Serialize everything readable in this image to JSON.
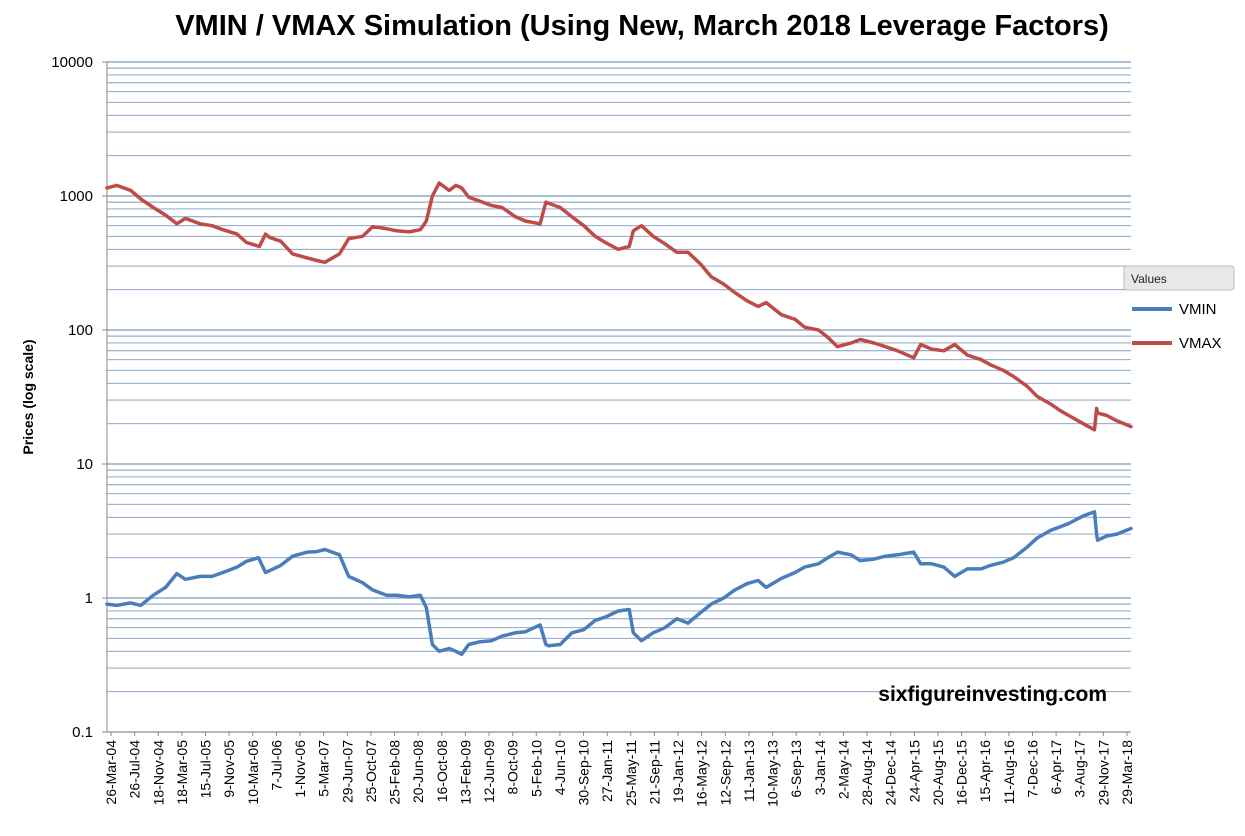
{
  "chart_data": {
    "type": "line",
    "title": "VMIN / VMAX Simulation (Using New, March 2018 Leverage Factors)",
    "xlabel": "",
    "ylabel": "Prices (log scale)",
    "y_scale": "log",
    "ylim": [
      0.1,
      10000
    ],
    "y_ticks": [
      "0.1",
      "1",
      "10",
      "100",
      "1000",
      "10000"
    ],
    "x_range": [
      "2004-03-26",
      "2018-07-31"
    ],
    "x_tick_labels": [
      "26-Mar-04",
      "26-Jul-04",
      "18-Nov-04",
      "18-Mar-05",
      "15-Jul-05",
      "9-Nov-05",
      "10-Mar-06",
      "7-Jul-06",
      "1-Nov-06",
      "5-Mar-07",
      "29-Jun-07",
      "25-Oct-07",
      "25-Feb-08",
      "20-Jun-08",
      "16-Oct-08",
      "13-Feb-09",
      "12-Jun-09",
      "8-Oct-09",
      "5-Feb-10",
      "4-Jun-10",
      "30-Sep-10",
      "27-Jan-11",
      "25-May-11",
      "21-Sep-11",
      "19-Jan-12",
      "16-May-12",
      "12-Sep-12",
      "11-Jan-13",
      "10-May-13",
      "6-Sep-13",
      "3-Jan-14",
      "2-May-14",
      "28-Aug-14",
      "24-Dec-14",
      "24-Apr-15",
      "20-Aug-15",
      "16-Dec-15",
      "15-Apr-16",
      "11-Aug-16",
      "7-Dec-16",
      "6-Apr-17",
      "3-Aug-17",
      "29-Nov-17",
      "29-Mar-18"
    ],
    "grid": "horizontal",
    "legend": {
      "title": "Values",
      "position": "right"
    },
    "annotation": "sixfigureinvesting.com",
    "series": [
      {
        "name": "VMIN",
        "color": "#4a7ebb",
        "points": [
          [
            "2004-03-26",
            0.9
          ],
          [
            "2004-05-15",
            0.88
          ],
          [
            "2004-07-26",
            0.92
          ],
          [
            "2004-09-15",
            0.88
          ],
          [
            "2004-11-18",
            1.05
          ],
          [
            "2005-01-20",
            1.2
          ],
          [
            "2005-03-18",
            1.52
          ],
          [
            "2005-05-01",
            1.38
          ],
          [
            "2005-07-15",
            1.45
          ],
          [
            "2005-09-15",
            1.45
          ],
          [
            "2005-11-09",
            1.55
          ],
          [
            "2006-01-20",
            1.7
          ],
          [
            "2006-03-10",
            1.88
          ],
          [
            "2006-05-10",
            2.0
          ],
          [
            "2006-06-15",
            1.55
          ],
          [
            "2006-07-07",
            1.6
          ],
          [
            "2006-09-01",
            1.75
          ],
          [
            "2006-11-01",
            2.05
          ],
          [
            "2007-01-15",
            2.2
          ],
          [
            "2007-03-05",
            2.22
          ],
          [
            "2007-04-15",
            2.3
          ],
          [
            "2007-06-29",
            2.1
          ],
          [
            "2007-08-15",
            1.45
          ],
          [
            "2007-10-25",
            1.3
          ],
          [
            "2007-12-15",
            1.15
          ],
          [
            "2008-02-25",
            1.05
          ],
          [
            "2008-04-15",
            1.05
          ],
          [
            "2008-06-20",
            1.02
          ],
          [
            "2008-08-15",
            1.05
          ],
          [
            "2008-09-15",
            0.85
          ],
          [
            "2008-10-16",
            0.45
          ],
          [
            "2008-11-20",
            0.4
          ],
          [
            "2009-01-10",
            0.42
          ],
          [
            "2009-02-13",
            0.4
          ],
          [
            "2009-03-15",
            0.38
          ],
          [
            "2009-04-20",
            0.45
          ],
          [
            "2009-06-12",
            0.47
          ],
          [
            "2009-08-15",
            0.48
          ],
          [
            "2009-10-08",
            0.52
          ],
          [
            "2009-12-15",
            0.55
          ],
          [
            "2010-02-05",
            0.56
          ],
          [
            "2010-04-20",
            0.63
          ],
          [
            "2010-05-20",
            0.45
          ],
          [
            "2010-06-04",
            0.44
          ],
          [
            "2010-08-01",
            0.45
          ],
          [
            "2010-09-30",
            0.55
          ],
          [
            "2010-11-30",
            0.58
          ],
          [
            "2011-01-27",
            0.68
          ],
          [
            "2011-03-20",
            0.72
          ],
          [
            "2011-05-25",
            0.8
          ],
          [
            "2011-07-20",
            0.82
          ],
          [
            "2011-08-10",
            0.55
          ],
          [
            "2011-09-21",
            0.48
          ],
          [
            "2011-11-20",
            0.55
          ],
          [
            "2012-01-19",
            0.6
          ],
          [
            "2012-03-20",
            0.7
          ],
          [
            "2012-05-16",
            0.65
          ],
          [
            "2012-07-20",
            0.78
          ],
          [
            "2012-09-12",
            0.9
          ],
          [
            "2012-11-15",
            1.0
          ],
          [
            "2013-01-11",
            1.15
          ],
          [
            "2013-03-15",
            1.28
          ],
          [
            "2013-05-10",
            1.35
          ],
          [
            "2013-06-20",
            1.2
          ],
          [
            "2013-09-06",
            1.4
          ],
          [
            "2013-11-15",
            1.55
          ],
          [
            "2014-01-03",
            1.7
          ],
          [
            "2014-03-15",
            1.8
          ],
          [
            "2014-05-02",
            2.0
          ],
          [
            "2014-06-20",
            2.2
          ],
          [
            "2014-08-28",
            2.1
          ],
          [
            "2014-10-15",
            1.9
          ],
          [
            "2014-12-24",
            1.95
          ],
          [
            "2015-02-20",
            2.05
          ],
          [
            "2015-04-24",
            2.1
          ],
          [
            "2015-07-15",
            2.2
          ],
          [
            "2015-08-20",
            1.8
          ],
          [
            "2015-10-15",
            1.8
          ],
          [
            "2015-12-16",
            1.7
          ],
          [
            "2016-02-10",
            1.45
          ],
          [
            "2016-04-15",
            1.65
          ],
          [
            "2016-06-25",
            1.65
          ],
          [
            "2016-08-11",
            1.75
          ],
          [
            "2016-10-15",
            1.85
          ],
          [
            "2016-12-07",
            2.0
          ],
          [
            "2017-02-15",
            2.4
          ],
          [
            "2017-04-06",
            2.8
          ],
          [
            "2017-06-15",
            3.2
          ],
          [
            "2017-08-03",
            3.4
          ],
          [
            "2017-09-15",
            3.6
          ],
          [
            "2017-11-29",
            4.1
          ],
          [
            "2018-01-25",
            4.4
          ],
          [
            "2018-02-05",
            3.0
          ],
          [
            "2018-02-10",
            2.7
          ],
          [
            "2018-03-29",
            2.9
          ],
          [
            "2018-05-20",
            3.0
          ],
          [
            "2018-07-31",
            3.3
          ]
        ]
      },
      {
        "name": "VMAX",
        "color": "#be4b48",
        "points": [
          [
            "2004-03-26",
            1150
          ],
          [
            "2004-05-15",
            1200
          ],
          [
            "2004-07-26",
            1100
          ],
          [
            "2004-09-15",
            950
          ],
          [
            "2004-11-18",
            820
          ],
          [
            "2005-01-20",
            720
          ],
          [
            "2005-03-18",
            620
          ],
          [
            "2005-05-01",
            680
          ],
          [
            "2005-07-15",
            620
          ],
          [
            "2005-09-15",
            600
          ],
          [
            "2005-11-09",
            560
          ],
          [
            "2006-01-20",
            520
          ],
          [
            "2006-03-10",
            450
          ],
          [
            "2006-05-15",
            420
          ],
          [
            "2006-06-15",
            520
          ],
          [
            "2006-07-07",
            490
          ],
          [
            "2006-09-01",
            460
          ],
          [
            "2006-11-01",
            370
          ],
          [
            "2007-01-15",
            345
          ],
          [
            "2007-03-05",
            330
          ],
          [
            "2007-04-15",
            320
          ],
          [
            "2007-06-29",
            370
          ],
          [
            "2007-08-15",
            480
          ],
          [
            "2007-10-25",
            500
          ],
          [
            "2007-12-15",
            590
          ],
          [
            "2008-02-25",
            570
          ],
          [
            "2008-04-15",
            550
          ],
          [
            "2008-06-20",
            540
          ],
          [
            "2008-08-15",
            560
          ],
          [
            "2008-09-15",
            650
          ],
          [
            "2008-10-16",
            1000
          ],
          [
            "2008-11-20",
            1250
          ],
          [
            "2009-01-10",
            1100
          ],
          [
            "2009-02-13",
            1200
          ],
          [
            "2009-03-15",
            1150
          ],
          [
            "2009-04-20",
            980
          ],
          [
            "2009-06-12",
            920
          ],
          [
            "2009-08-15",
            850
          ],
          [
            "2009-10-08",
            820
          ],
          [
            "2009-12-15",
            700
          ],
          [
            "2010-02-05",
            650
          ],
          [
            "2010-04-20",
            620
          ],
          [
            "2010-05-20",
            900
          ],
          [
            "2010-06-04",
            880
          ],
          [
            "2010-08-01",
            820
          ],
          [
            "2010-09-30",
            700
          ],
          [
            "2010-11-30",
            600
          ],
          [
            "2011-01-27",
            500
          ],
          [
            "2011-03-20",
            450
          ],
          [
            "2011-05-25",
            400
          ],
          [
            "2011-07-20",
            420
          ],
          [
            "2011-08-10",
            550
          ],
          [
            "2011-09-21",
            600
          ],
          [
            "2011-11-20",
            500
          ],
          [
            "2012-01-19",
            440
          ],
          [
            "2012-03-20",
            380
          ],
          [
            "2012-05-16",
            380
          ],
          [
            "2012-07-20",
            310
          ],
          [
            "2012-09-12",
            250
          ],
          [
            "2012-11-15",
            220
          ],
          [
            "2013-01-11",
            190
          ],
          [
            "2013-03-15",
            165
          ],
          [
            "2013-05-10",
            150
          ],
          [
            "2013-06-20",
            160
          ],
          [
            "2013-09-06",
            130
          ],
          [
            "2013-11-15",
            120
          ],
          [
            "2014-01-03",
            105
          ],
          [
            "2014-03-15",
            100
          ],
          [
            "2014-05-02",
            88
          ],
          [
            "2014-06-20",
            75
          ],
          [
            "2014-08-28",
            80
          ],
          [
            "2014-10-15",
            85
          ],
          [
            "2014-12-24",
            80
          ],
          [
            "2015-02-20",
            75
          ],
          [
            "2015-04-24",
            70
          ],
          [
            "2015-07-15",
            62
          ],
          [
            "2015-08-20",
            78
          ],
          [
            "2015-10-15",
            72
          ],
          [
            "2015-12-16",
            70
          ],
          [
            "2016-02-10",
            78
          ],
          [
            "2016-04-15",
            65
          ],
          [
            "2016-06-25",
            60
          ],
          [
            "2016-08-11",
            55
          ],
          [
            "2016-10-15",
            50
          ],
          [
            "2016-12-07",
            45
          ],
          [
            "2017-02-15",
            38
          ],
          [
            "2017-04-06",
            32
          ],
          [
            "2017-06-15",
            28
          ],
          [
            "2017-08-03",
            25
          ],
          [
            "2017-09-15",
            23
          ],
          [
            "2017-11-29",
            20
          ],
          [
            "2018-01-25",
            18
          ],
          [
            "2018-02-05",
            26
          ],
          [
            "2018-02-10",
            24
          ],
          [
            "2018-03-29",
            23
          ],
          [
            "2018-05-20",
            21
          ],
          [
            "2018-07-31",
            19
          ]
        ]
      }
    ]
  }
}
